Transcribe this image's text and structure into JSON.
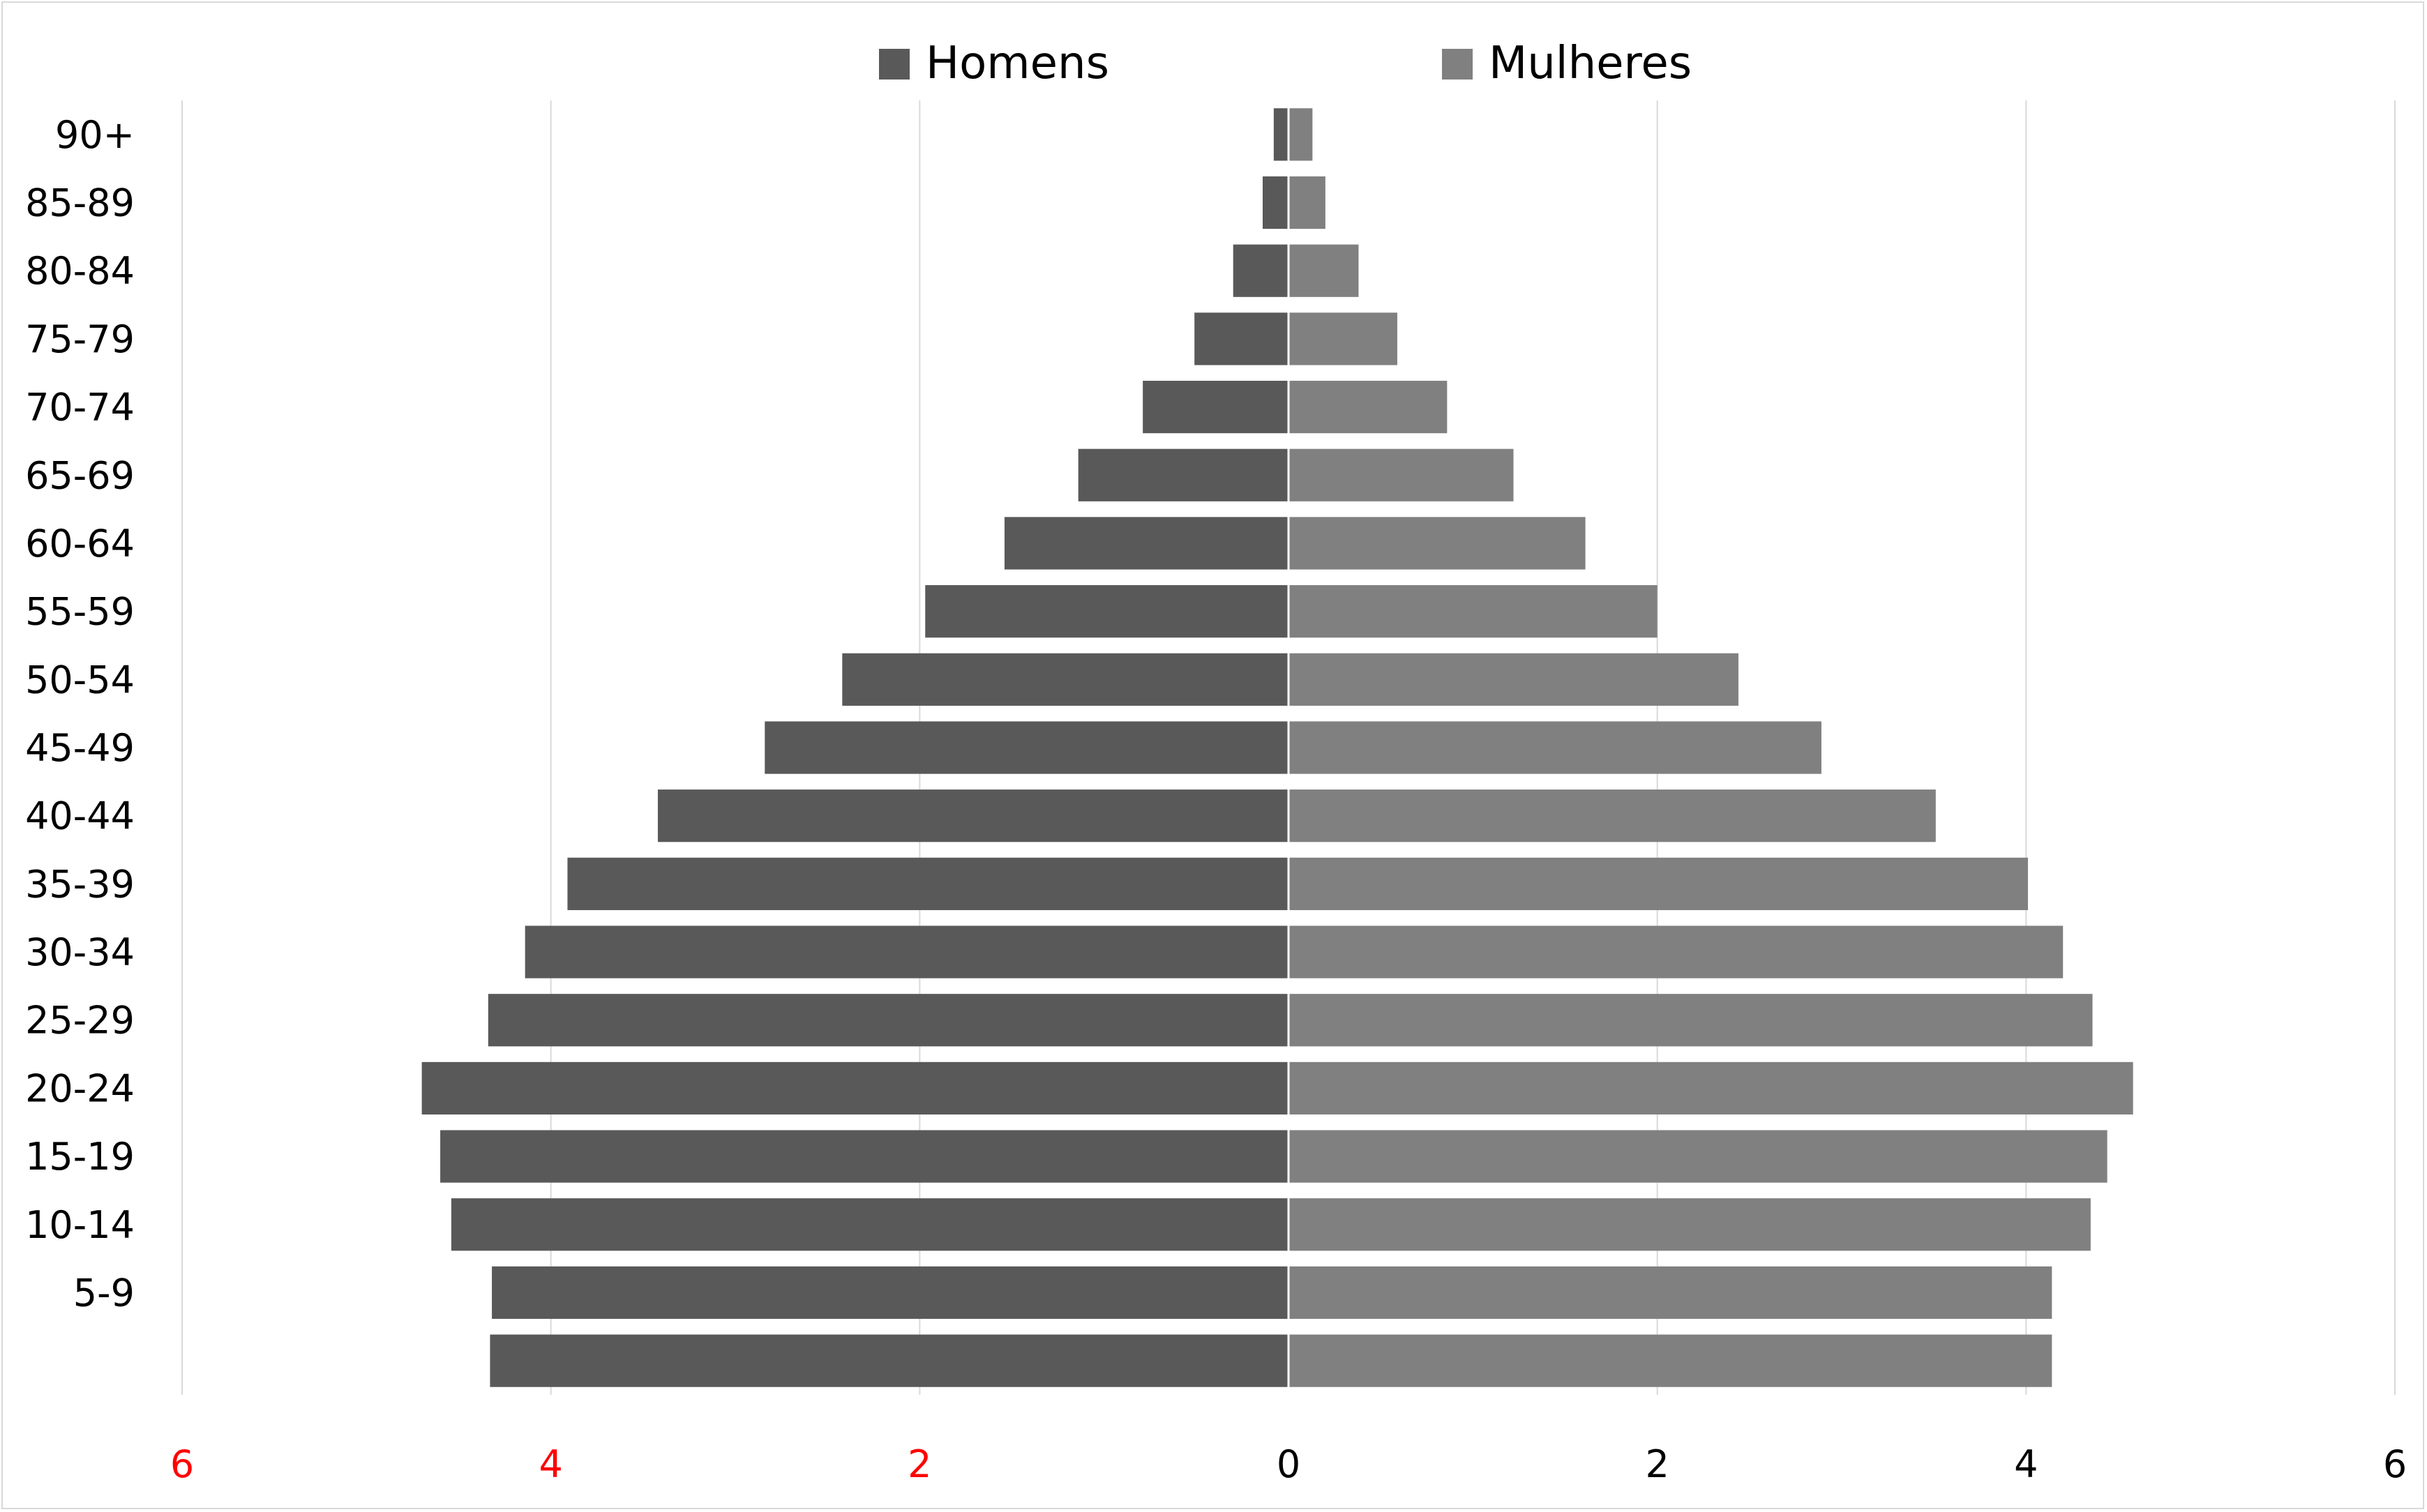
{
  "chart_data": {
    "type": "bar",
    "orientation": "horizontal",
    "subtype": "population-pyramid",
    "categories": [
      "",
      "5-9",
      "10-14",
      "15-19",
      "20-24",
      "25-29",
      "30-34",
      "35-39",
      "40-44",
      "45-49",
      "50-54",
      "55-59",
      "60-64",
      "65-69",
      "70-74",
      "75-79",
      "80-84",
      "85-89",
      "90+"
    ],
    "series": [
      {
        "name": "Homens",
        "color": "#595959",
        "side": "left",
        "values": [
          4.33,
          4.32,
          4.54,
          4.6,
          4.7,
          4.34,
          4.14,
          3.91,
          3.42,
          2.84,
          2.42,
          1.97,
          1.54,
          1.14,
          0.79,
          0.51,
          0.3,
          0.14,
          0.08
        ]
      },
      {
        "name": "Mulheres",
        "color": "#808080",
        "side": "right",
        "values": [
          4.14,
          4.14,
          4.35,
          4.44,
          4.58,
          4.36,
          4.2,
          4.01,
          3.51,
          2.89,
          2.44,
          2.0,
          1.61,
          1.22,
          0.86,
          0.59,
          0.38,
          0.2,
          0.13
        ]
      }
    ],
    "x_ticks": [
      {
        "label": "6",
        "value": -6,
        "color": "#ff0000"
      },
      {
        "label": "4",
        "value": -4,
        "color": "#ff0000"
      },
      {
        "label": "2",
        "value": -2,
        "color": "#ff0000"
      },
      {
        "label": "0",
        "value": 0,
        "color": "#000000"
      },
      {
        "label": "2",
        "value": 2,
        "color": "#000000"
      },
      {
        "label": "4",
        "value": 4,
        "color": "#000000"
      },
      {
        "label": "6",
        "value": 6,
        "color": "#000000"
      }
    ],
    "xlim": [
      -6,
      6
    ],
    "grid": "vertical",
    "legend_position": "top-center",
    "title": "",
    "xlabel": "",
    "ylabel": ""
  }
}
